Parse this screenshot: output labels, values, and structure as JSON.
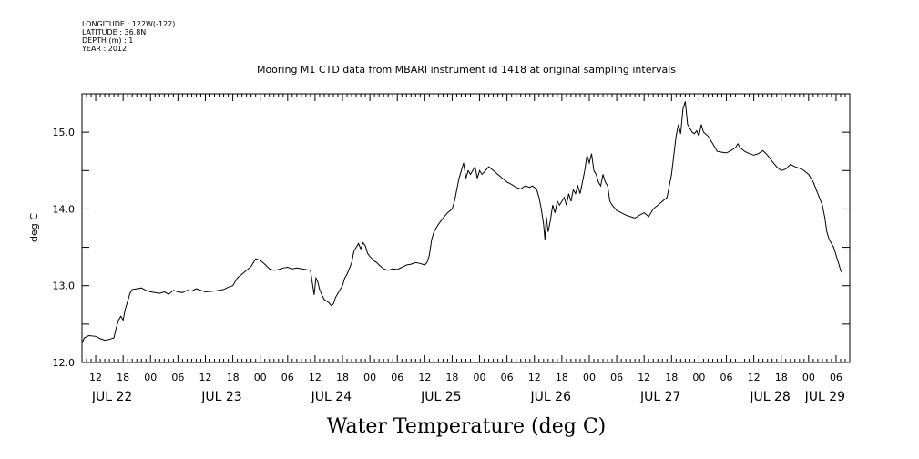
{
  "header": {
    "longitude": "LONGITUDE : 122W(-122)",
    "latitude": "LATITUDE : 36.8N",
    "depth": "DEPTH (m) : 1",
    "year": "YEAR : 2012"
  },
  "chart_data": {
    "type": "line",
    "title": "Mooring M1 CTD data from MBARI instrument id 1418 at original sampling intervals",
    "ylabel": "deg C",
    "xlabel": "Water Temperature (deg C)",
    "ylim": [
      12.0,
      15.5
    ],
    "y_ticks": [
      "12.0",
      "13.0",
      "14.0",
      "15.0"
    ],
    "x_range_hours": [
      9,
      177
    ],
    "x_hour_ticks": [
      {
        "h": 12,
        "label": "12"
      },
      {
        "h": 18,
        "label": "18"
      },
      {
        "h": 24,
        "label": "00"
      },
      {
        "h": 30,
        "label": "06"
      },
      {
        "h": 36,
        "label": "12"
      },
      {
        "h": 42,
        "label": "18"
      },
      {
        "h": 48,
        "label": "00"
      },
      {
        "h": 54,
        "label": "06"
      },
      {
        "h": 60,
        "label": "12"
      },
      {
        "h": 66,
        "label": "18"
      },
      {
        "h": 72,
        "label": "00"
      },
      {
        "h": 78,
        "label": "06"
      },
      {
        "h": 84,
        "label": "12"
      },
      {
        "h": 90,
        "label": "18"
      },
      {
        "h": 96,
        "label": "00"
      },
      {
        "h": 102,
        "label": "06"
      },
      {
        "h": 108,
        "label": "12"
      },
      {
        "h": 114,
        "label": "18"
      },
      {
        "h": 120,
        "label": "00"
      },
      {
        "h": 126,
        "label": "06"
      },
      {
        "h": 132,
        "label": "12"
      },
      {
        "h": 138,
        "label": "18"
      },
      {
        "h": 144,
        "label": "00"
      },
      {
        "h": 150,
        "label": "06"
      },
      {
        "h": 156,
        "label": "12"
      },
      {
        "h": 162,
        "label": "18"
      },
      {
        "h": 168,
        "label": "00"
      },
      {
        "h": 174,
        "label": "06"
      }
    ],
    "day_labels": [
      {
        "h": 12,
        "label": "JUL 22"
      },
      {
        "h": 36,
        "label": "JUL 23"
      },
      {
        "h": 60,
        "label": "JUL 24"
      },
      {
        "h": 84,
        "label": "JUL 25"
      },
      {
        "h": 108,
        "label": "JUL 26"
      },
      {
        "h": 132,
        "label": "JUL 27"
      },
      {
        "h": 156,
        "label": "JUL 28"
      },
      {
        "h": 168,
        "label": "JUL 29"
      }
    ],
    "series": [
      {
        "points": [
          [
            9.0,
            12.25
          ],
          [
            9.5,
            12.32
          ],
          [
            10.5,
            12.35
          ],
          [
            12,
            12.34
          ],
          [
            13,
            12.31
          ],
          [
            14,
            12.29
          ],
          [
            15,
            12.3
          ],
          [
            16,
            12.32
          ],
          [
            16.5,
            12.45
          ],
          [
            17,
            12.55
          ],
          [
            17.5,
            12.6
          ],
          [
            18,
            12.55
          ],
          [
            18.4,
            12.68
          ],
          [
            19,
            12.8
          ],
          [
            19.5,
            12.9
          ],
          [
            20,
            12.95
          ],
          [
            21,
            12.96
          ],
          [
            22,
            12.97
          ],
          [
            23,
            12.94
          ],
          [
            24,
            12.92
          ],
          [
            26,
            12.9
          ],
          [
            27,
            12.92
          ],
          [
            28,
            12.89
          ],
          [
            29,
            12.94
          ],
          [
            30,
            12.92
          ],
          [
            31,
            12.91
          ],
          [
            32,
            12.94
          ],
          [
            33,
            12.93
          ],
          [
            34,
            12.96
          ],
          [
            35,
            12.94
          ],
          [
            36,
            12.92
          ],
          [
            38,
            12.93
          ],
          [
            40,
            12.95
          ],
          [
            41,
            12.98
          ],
          [
            42,
            13.0
          ],
          [
            43,
            13.1
          ],
          [
            44,
            13.15
          ],
          [
            45,
            13.2
          ],
          [
            46,
            13.25
          ],
          [
            46.5,
            13.3
          ],
          [
            47,
            13.35
          ],
          [
            48,
            13.33
          ],
          [
            49,
            13.28
          ],
          [
            50,
            13.22
          ],
          [
            51,
            13.2
          ],
          [
            52,
            13.21
          ],
          [
            53,
            13.23
          ],
          [
            54,
            13.24
          ],
          [
            55,
            13.22
          ],
          [
            56,
            13.23
          ],
          [
            58,
            13.21
          ],
          [
            59,
            13.2
          ],
          [
            59.5,
            13.0
          ],
          [
            59.8,
            12.88
          ],
          [
            60.2,
            13.1
          ],
          [
            60.6,
            13.05
          ],
          [
            61,
            12.95
          ],
          [
            61.5,
            12.88
          ],
          [
            62,
            12.82
          ],
          [
            63,
            12.78
          ],
          [
            63.5,
            12.74
          ],
          [
            64,
            12.76
          ],
          [
            64.5,
            12.85
          ],
          [
            65,
            12.9
          ],
          [
            65.5,
            12.95
          ],
          [
            66,
            13.0
          ],
          [
            66.5,
            13.1
          ],
          [
            67,
            13.15
          ],
          [
            67.5,
            13.22
          ],
          [
            68,
            13.3
          ],
          [
            68.5,
            13.45
          ],
          [
            69,
            13.5
          ],
          [
            69.5,
            13.55
          ],
          [
            70,
            13.48
          ],
          [
            70.5,
            13.56
          ],
          [
            71,
            13.52
          ],
          [
            71.5,
            13.42
          ],
          [
            72,
            13.38
          ],
          [
            72.5,
            13.35
          ],
          [
            73,
            13.32
          ],
          [
            73.5,
            13.3
          ],
          [
            74,
            13.27
          ],
          [
            75,
            13.22
          ],
          [
            76,
            13.2
          ],
          [
            77,
            13.22
          ],
          [
            78,
            13.21
          ],
          [
            79,
            13.24
          ],
          [
            80,
            13.27
          ],
          [
            81,
            13.28
          ],
          [
            82,
            13.3
          ],
          [
            83,
            13.29
          ],
          [
            84,
            13.27
          ],
          [
            84.5,
            13.3
          ],
          [
            85,
            13.4
          ],
          [
            85.5,
            13.6
          ],
          [
            86,
            13.7
          ],
          [
            86.5,
            13.75
          ],
          [
            87,
            13.8
          ],
          [
            88,
            13.88
          ],
          [
            89,
            13.95
          ],
          [
            90,
            14.0
          ],
          [
            90.5,
            14.1
          ],
          [
            91,
            14.25
          ],
          [
            91.5,
            14.4
          ],
          [
            92,
            14.5
          ],
          [
            92.5,
            14.6
          ],
          [
            93,
            14.4
          ],
          [
            93.5,
            14.5
          ],
          [
            94,
            14.45
          ],
          [
            94.5,
            14.5
          ],
          [
            95,
            14.55
          ],
          [
            95.5,
            14.4
          ],
          [
            96,
            14.5
          ],
          [
            96.5,
            14.45
          ],
          [
            97,
            14.48
          ],
          [
            98,
            14.55
          ],
          [
            99,
            14.5
          ],
          [
            100,
            14.45
          ],
          [
            101,
            14.4
          ],
          [
            102,
            14.35
          ],
          [
            103,
            14.32
          ],
          [
            104,
            14.28
          ],
          [
            105,
            14.26
          ],
          [
            106,
            14.3
          ],
          [
            107,
            14.28
          ],
          [
            107.5,
            14.3
          ],
          [
            108,
            14.28
          ],
          [
            108.5,
            14.25
          ],
          [
            109,
            14.15
          ],
          [
            109.5,
            14.0
          ],
          [
            110,
            13.8
          ],
          [
            110.3,
            13.6
          ],
          [
            110.6,
            13.9
          ],
          [
            111,
            13.7
          ],
          [
            111.5,
            13.85
          ],
          [
            112,
            14.05
          ],
          [
            112.5,
            13.95
          ],
          [
            113,
            14.1
          ],
          [
            113.5,
            14.05
          ],
          [
            114,
            14.1
          ],
          [
            114.5,
            14.15
          ],
          [
            115,
            14.05
          ],
          [
            115.5,
            14.2
          ],
          [
            116,
            14.1
          ],
          [
            116.5,
            14.25
          ],
          [
            117,
            14.2
          ],
          [
            117.5,
            14.3
          ],
          [
            118,
            14.2
          ],
          [
            118.5,
            14.35
          ],
          [
            119,
            14.5
          ],
          [
            119.5,
            14.7
          ],
          [
            120,
            14.6
          ],
          [
            120.5,
            14.72
          ],
          [
            121,
            14.5
          ],
          [
            121.5,
            14.45
          ],
          [
            122,
            14.35
          ],
          [
            122.5,
            14.3
          ],
          [
            123,
            14.45
          ],
          [
            123.5,
            14.35
          ],
          [
            124,
            14.3
          ],
          [
            124.5,
            14.1
          ],
          [
            125,
            14.05
          ],
          [
            126,
            13.98
          ],
          [
            127,
            13.95
          ],
          [
            128,
            13.92
          ],
          [
            129,
            13.9
          ],
          [
            130,
            13.88
          ],
          [
            131,
            13.92
          ],
          [
            132,
            13.95
          ],
          [
            133,
            13.9
          ],
          [
            134,
            14.0
          ],
          [
            135,
            14.05
          ],
          [
            136,
            14.1
          ],
          [
            137,
            14.15
          ],
          [
            137.5,
            14.3
          ],
          [
            138,
            14.45
          ],
          [
            138.5,
            14.7
          ],
          [
            139,
            14.95
          ],
          [
            139.5,
            15.1
          ],
          [
            140,
            14.98
          ],
          [
            140.5,
            15.3
          ],
          [
            141,
            15.4
          ],
          [
            141.5,
            15.1
          ],
          [
            142,
            15.05
          ],
          [
            142.5,
            15.0
          ],
          [
            143,
            14.98
          ],
          [
            143.5,
            15.02
          ],
          [
            144,
            14.95
          ],
          [
            144.5,
            15.1
          ],
          [
            145,
            15.0
          ],
          [
            146,
            14.95
          ],
          [
            147,
            14.85
          ],
          [
            148,
            14.75
          ],
          [
            149,
            14.74
          ],
          [
            150,
            14.73
          ],
          [
            151,
            14.76
          ],
          [
            152,
            14.8
          ],
          [
            152.5,
            14.85
          ],
          [
            153,
            14.8
          ],
          [
            154,
            14.75
          ],
          [
            155,
            14.72
          ],
          [
            156,
            14.7
          ],
          [
            157,
            14.72
          ],
          [
            158,
            14.76
          ],
          [
            159,
            14.7
          ],
          [
            160,
            14.62
          ],
          [
            161,
            14.55
          ],
          [
            162,
            14.5
          ],
          [
            163,
            14.52
          ],
          [
            164,
            14.58
          ],
          [
            165,
            14.55
          ],
          [
            166,
            14.53
          ],
          [
            167,
            14.5
          ],
          [
            168,
            14.45
          ],
          [
            169,
            14.35
          ],
          [
            170,
            14.2
          ],
          [
            171,
            14.05
          ],
          [
            171.5,
            13.9
          ],
          [
            172,
            13.7
          ],
          [
            172.5,
            13.6
          ],
          [
            173,
            13.55
          ],
          [
            173.5,
            13.5
          ],
          [
            174,
            13.4
          ],
          [
            174.5,
            13.3
          ],
          [
            175,
            13.2
          ],
          [
            175.3,
            13.17
          ]
        ]
      }
    ]
  }
}
